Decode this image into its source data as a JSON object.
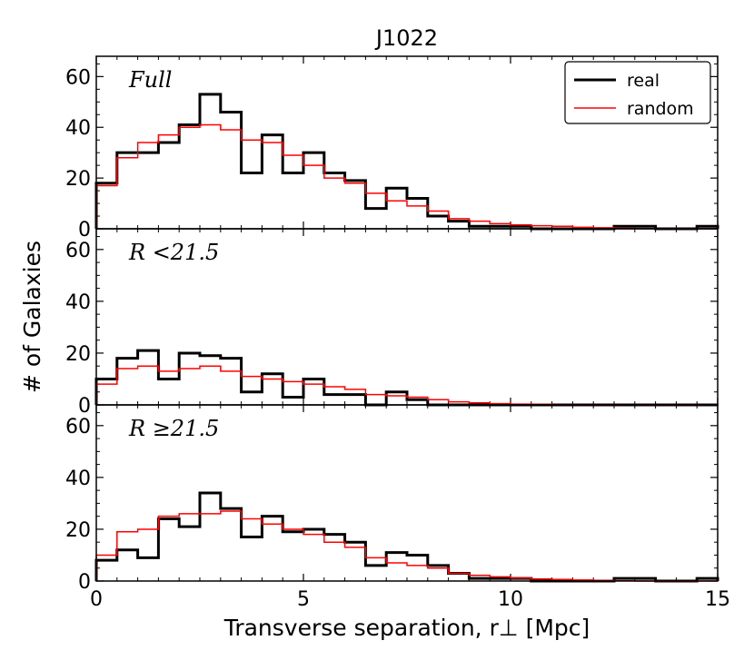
{
  "chart_data": {
    "type": "histogram",
    "title": "J1022",
    "xlabel": "Transverse separation, r⊥ [Mpc]",
    "ylabel": "# of Galaxies",
    "xlim": [
      0,
      15
    ],
    "ylim": [
      0,
      68
    ],
    "x_ticks": [
      "0",
      "5",
      "10",
      "15"
    ],
    "y_ticks": [
      "0",
      "20",
      "40",
      "60"
    ],
    "bin_edges": [
      0,
      0.5,
      1,
      1.5,
      2,
      2.5,
      3,
      3.5,
      4,
      4.5,
      5,
      5.5,
      6,
      6.5,
      7,
      7.5,
      8,
      8.5,
      9,
      9.5,
      10,
      10.5,
      11,
      11.5,
      12,
      12.5,
      13,
      13.5,
      14,
      14.5,
      15
    ],
    "legend": {
      "position": "top-right",
      "entries": [
        {
          "name": "real",
          "color": "#000000"
        },
        {
          "name": "random",
          "color": "#ff0000"
        }
      ]
    },
    "panels": [
      {
        "label": "Full",
        "series": [
          {
            "name": "real",
            "color": "#000000",
            "values": [
              18,
              30,
              30,
              34,
              41,
              53,
              46,
              22,
              37,
              22,
              30,
              22,
              19,
              8,
              16,
              12,
              5,
              3,
              1,
              1,
              1,
              0,
              0,
              0,
              0,
              1,
              1,
              0,
              0,
              1
            ]
          },
          {
            "name": "random",
            "color": "#ff0000",
            "values": [
              17,
              28,
              34,
              37,
              40,
              41,
              39,
              35,
              34,
              29,
              25,
              20,
              18,
              14,
              11,
              9,
              7,
              4,
              3,
              2,
              1.5,
              1.2,
              1,
              0.6,
              0.4,
              0.2,
              0.1,
              0,
              0,
              0
            ]
          }
        ]
      },
      {
        "label": "R <21.5",
        "series": [
          {
            "name": "real",
            "color": "#000000",
            "values": [
              10,
              18,
              21,
              10,
              20,
              19,
              18,
              5,
              12,
              3,
              10,
              4,
              4,
              0,
              5,
              2,
              0,
              0,
              0,
              0,
              0,
              0,
              0,
              0,
              0,
              0,
              0,
              0,
              0,
              0
            ]
          },
          {
            "name": "random",
            "color": "#ff0000",
            "values": [
              8,
              14,
              15,
              13,
              14,
              15,
              13,
              11,
              10,
              9,
              8,
              7,
              6,
              4,
              3.5,
              3,
              2,
              1.2,
              0.8,
              0.5,
              0.3,
              0.2,
              0.1,
              0,
              0,
              0,
              0,
              0,
              0,
              0
            ]
          }
        ]
      },
      {
        "label": "R ≥21.5",
        "series": [
          {
            "name": "real",
            "color": "#000000",
            "values": [
              8,
              12,
              9,
              24,
              21,
              34,
              28,
              17,
              25,
              19,
              20,
              18,
              15,
              6,
              11,
              10,
              6,
              3,
              1,
              1,
              1,
              0,
              0,
              0,
              0,
              1,
              1,
              0,
              0,
              1
            ]
          },
          {
            "name": "random",
            "color": "#ff0000",
            "values": [
              10,
              19,
              20,
              25,
              26,
              26,
              27,
              24,
              22,
              20,
              18,
              15,
              13,
              9,
              7,
              6,
              5,
              3,
              2.2,
              1.6,
              1.2,
              0.8,
              0.6,
              0.4,
              0.2,
              0.1,
              0,
              0,
              0,
              0
            ]
          }
        ]
      }
    ]
  }
}
